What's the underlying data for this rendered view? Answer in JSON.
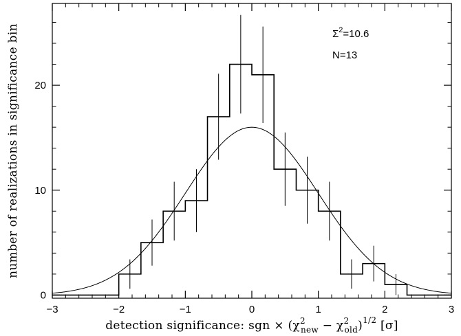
{
  "chart_data": {
    "type": "histogram",
    "xlabel": "detection significance: sgn × (χ²new − χ²old)^1/2 [σ]",
    "xlabel_parts": {
      "prefix": "detection significance: sgn × (χ",
      "sup1": "2",
      "sub1": "new",
      "minus": " − χ",
      "sup2": "2",
      "sub2": "old",
      "close": ")",
      "sup3": "1/2",
      "suffix": " [σ]"
    },
    "ylabel": "number of realizations in significance bin",
    "xlim": [
      -3,
      3
    ],
    "ylim": [
      -0.3,
      27.8
    ],
    "x_ticks": [
      -3,
      -2,
      -1,
      0,
      1,
      2,
      3
    ],
    "x_tick_labels": [
      "−3",
      "−2",
      "−1",
      "0",
      "1",
      "2",
      "3"
    ],
    "y_ticks": [
      0,
      10,
      20
    ],
    "y_tick_labels": [
      "0",
      "10",
      "20"
    ],
    "bins": [
      {
        "x0": -3.0,
        "x1": -2.0,
        "count": 0
      },
      {
        "x0": -2.0,
        "x1": -1.667,
        "count": 2
      },
      {
        "x0": -1.667,
        "x1": -1.333,
        "count": 5
      },
      {
        "x0": -1.333,
        "x1": -1.0,
        "count": 8
      },
      {
        "x0": -1.0,
        "x1": -0.667,
        "count": 9
      },
      {
        "x0": -0.667,
        "x1": -0.333,
        "count": 17
      },
      {
        "x0": -0.333,
        "x1": 0.0,
        "count": 22
      },
      {
        "x0": 0.0,
        "x1": 0.333,
        "count": 21
      },
      {
        "x0": 0.333,
        "x1": 0.667,
        "count": 12
      },
      {
        "x0": 0.667,
        "x1": 1.0,
        "count": 10
      },
      {
        "x0": 1.0,
        "x1": 1.333,
        "count": 8
      },
      {
        "x0": 1.333,
        "x1": 1.667,
        "count": 2
      },
      {
        "x0": 1.667,
        "x1": 2.0,
        "count": 3
      },
      {
        "x0": 2.0,
        "x1": 2.333,
        "count": 1
      },
      {
        "x0": 2.333,
        "x1": 3.0,
        "count": 0
      }
    ],
    "error_bars": [
      {
        "x": -1.833,
        "low": 0.6,
        "high": 3.4
      },
      {
        "x": -1.5,
        "low": 2.8,
        "high": 7.2
      },
      {
        "x": -1.167,
        "low": 5.2,
        "high": 10.8
      },
      {
        "x": -0.833,
        "low": 6.0,
        "high": 12.0
      },
      {
        "x": -0.5,
        "low": 12.9,
        "high": 21.1
      },
      {
        "x": -0.167,
        "low": 17.3,
        "high": 26.7
      },
      {
        "x": 0.167,
        "low": 16.4,
        "high": 25.6
      },
      {
        "x": 0.5,
        "low": 8.5,
        "high": 15.5
      },
      {
        "x": 0.833,
        "low": 6.8,
        "high": 13.2
      },
      {
        "x": 1.167,
        "low": 5.2,
        "high": 10.8
      },
      {
        "x": 1.5,
        "low": 0.6,
        "high": 3.4
      },
      {
        "x": 1.833,
        "low": 1.3,
        "high": 4.7
      },
      {
        "x": 2.167,
        "low": 0.0,
        "high": 2.0
      }
    ],
    "gaussian_curve": {
      "amplitude": 16.0,
      "mean": 0.0,
      "sigma": 1.0
    },
    "annotations": [
      {
        "text_main": "Σ",
        "text_sup": "2",
        "text_rest": "=10.6"
      },
      {
        "text": "N=13"
      }
    ],
    "grid": false,
    "legend": "none"
  }
}
